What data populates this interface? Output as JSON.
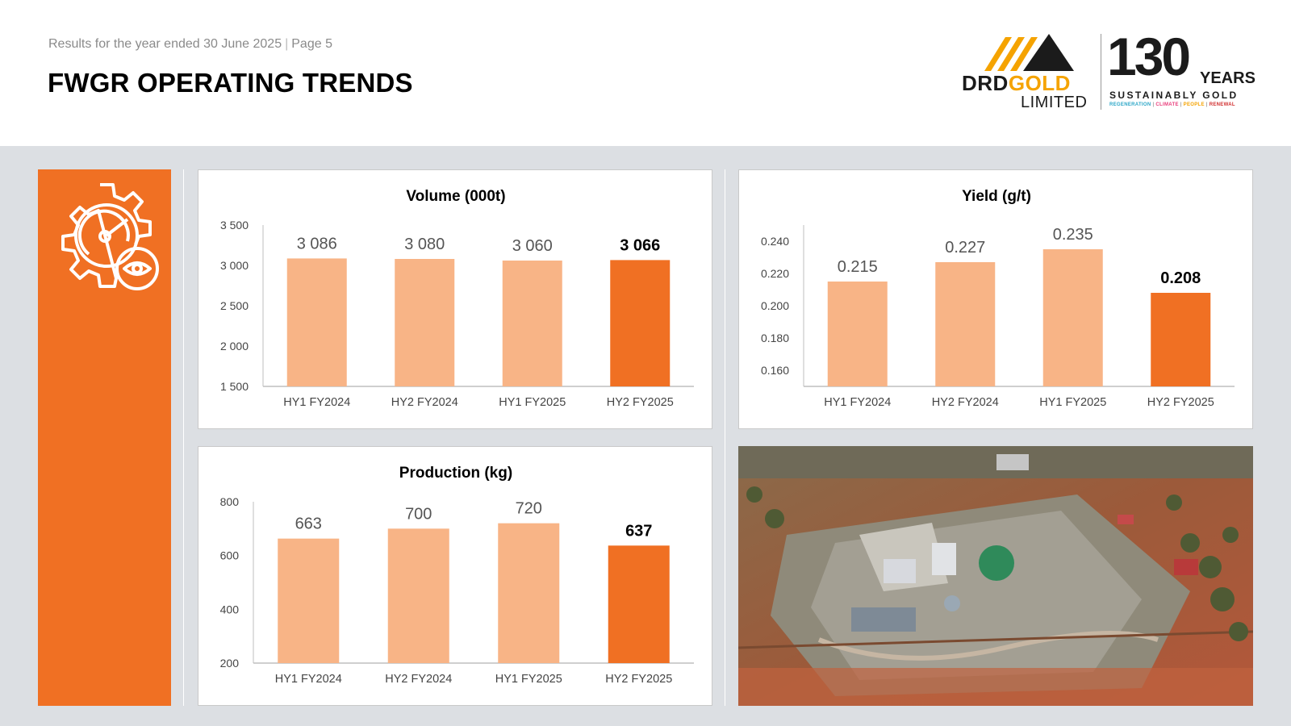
{
  "header": {
    "subtitle": "Results for the year ended 30 June 2025",
    "page": "Page 5",
    "title": "FWGR OPERATING TRENDS"
  },
  "logo": {
    "company_left": "DRD",
    "company_right": "GOLD",
    "limited": "LIMITED",
    "years_number": "130",
    "years_word": "YEARS",
    "tagline_main": "SUSTAINABLY GOLD",
    "tagline_items": [
      "REGENERATION",
      "CLIMATE",
      "PEOPLE",
      "RENEWAL"
    ],
    "tagline_colors": [
      "#2aa6c7",
      "#e93b7a",
      "#f5a300",
      "#d12e2e"
    ]
  },
  "colors": {
    "accent": "#f07023",
    "bar_light": "#f8b486",
    "bar_highlight": "#f07023",
    "panel_bg": "#dcdfe3"
  },
  "icons": {
    "side_panel_icon": "gear-gauge-eye-icon"
  },
  "photo": {
    "description_icon": "aerial-plant-photo"
  },
  "chart_data": [
    {
      "id": "volume",
      "type": "bar",
      "title": "Volume (000t)",
      "categories": [
        "HY1 FY2024",
        "HY2 FY2024",
        "HY1 FY2025",
        "HY2 FY2025"
      ],
      "values": [
        3086,
        3080,
        3060,
        3066
      ],
      "value_labels": [
        "3 086",
        "3 080",
        "3 060",
        "3 066"
      ],
      "highlight_index": 3,
      "ylim": [
        1500,
        3500
      ],
      "yticks": [
        1500,
        2000,
        2500,
        3000,
        3500
      ],
      "ytick_labels": [
        "1 500",
        "2 000",
        "2 500",
        "3 000",
        "3 500"
      ]
    },
    {
      "id": "yield",
      "type": "bar",
      "title": "Yield (g/t)",
      "categories": [
        "HY1 FY2024",
        "HY2 FY2024",
        "HY1 FY2025",
        "HY2 FY2025"
      ],
      "values": [
        0.215,
        0.227,
        0.235,
        0.208
      ],
      "value_labels": [
        "0.215",
        "0.227",
        "0.235",
        "0.208"
      ],
      "highlight_index": 3,
      "ylim": [
        0.15,
        0.25
      ],
      "yticks": [
        0.16,
        0.18,
        0.2,
        0.22,
        0.24
      ],
      "ytick_labels": [
        "0.160",
        "0.180",
        "0.200",
        "0.220",
        "0.240"
      ]
    },
    {
      "id": "production",
      "type": "bar",
      "title": "Production (kg)",
      "categories": [
        "HY1 FY2024",
        "HY2 FY2024",
        "HY1 FY2025",
        "HY2 FY2025"
      ],
      "values": [
        663,
        700,
        720,
        637
      ],
      "value_labels": [
        "663",
        "700",
        "720",
        "637"
      ],
      "highlight_index": 3,
      "ylim": [
        200,
        800
      ],
      "yticks": [
        200,
        400,
        600,
        800
      ],
      "ytick_labels": [
        "200",
        "400",
        "600",
        "800"
      ]
    }
  ]
}
